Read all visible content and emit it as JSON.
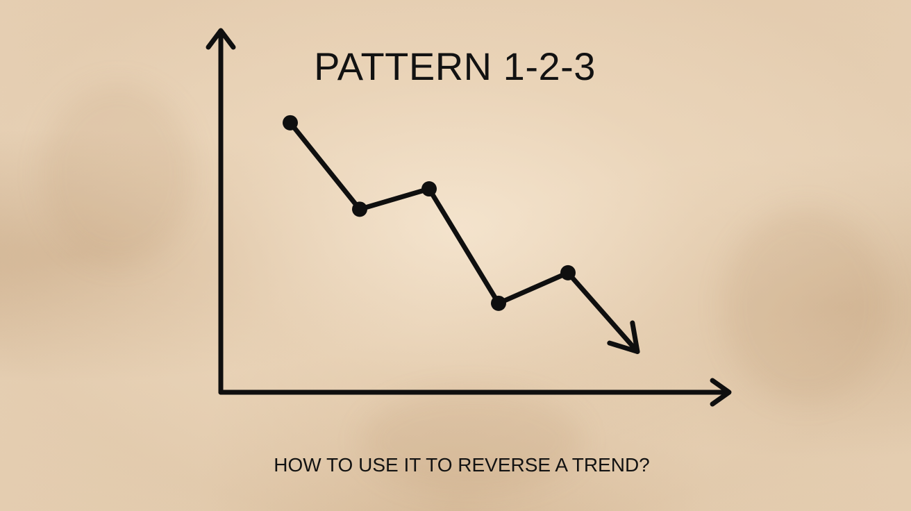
{
  "chart_data": {
    "type": "line",
    "title": "PATTERN 1-2-3",
    "subtitle": "HOW TO USE IT TO REVERSE A TREND?",
    "xlabel": "",
    "ylabel": "",
    "grid": false,
    "line_color": "#0f0f0f",
    "series": [
      {
        "points": [
          {
            "x": 1,
            "y": 10.0
          },
          {
            "x": 2,
            "y": 6.6
          },
          {
            "x": 3,
            "y": 7.4
          },
          {
            "x": 4,
            "y": 2.9
          },
          {
            "x": 5,
            "y": 4.1
          },
          {
            "x": 6,
            "y": 1.0
          }
        ],
        "marker_indices": [
          0,
          1,
          2,
          3,
          4
        ],
        "arrow_end": true
      }
    ],
    "xlim": [
      0,
      7.3
    ],
    "ylim": [
      -0.6,
      13.6
    ]
  },
  "colors": {
    "ink": "#0f0f0f",
    "paper": "#e8d3b8"
  }
}
